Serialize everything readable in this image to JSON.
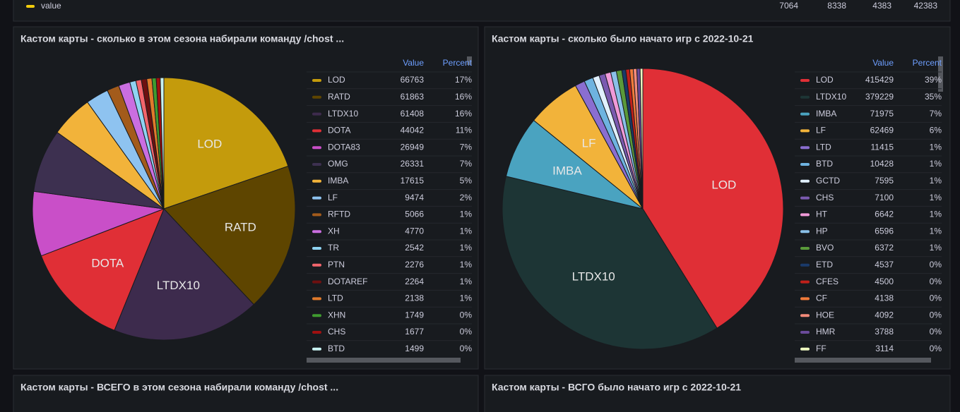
{
  "top_legend": {
    "name": "value",
    "values": [
      7064,
      8338,
      4383,
      42383
    ]
  },
  "chart_data": [
    {
      "type": "pie",
      "title": "Кастом карты - сколько в этом сезона набирали команду /chost ...",
      "legend_columns": [
        "Value",
        "Percent"
      ],
      "categories": [
        "LOD",
        "RATD",
        "LTDX10",
        "DOTA",
        "DOTA83",
        "OMG",
        "IMBA",
        "LF",
        "RFTD",
        "XH",
        "TR",
        "PTN",
        "DOTAREF",
        "LTD",
        "XHN",
        "CHS",
        "BTD"
      ],
      "values": [
        66763,
        61863,
        61408,
        44042,
        26949,
        26331,
        17615,
        9474,
        5066,
        4770,
        2542,
        2276,
        2264,
        2138,
        1749,
        1677,
        1499
      ],
      "percent_labels": [
        "17%",
        "16%",
        "16%",
        "11%",
        "7%",
        "7%",
        "5%",
        "2%",
        "1%",
        "1%",
        "1%",
        "1%",
        "1%",
        "1%",
        "0%",
        "0%",
        "0%"
      ],
      "colors": [
        "#c49b0c",
        "#5e4500",
        "#3d2b4d",
        "#e02f36",
        "#c94fc8",
        "#3d3050",
        "#f2b33a",
        "#8ec3f0",
        "#a35b1b",
        "#ca6ee0",
        "#8fd3f2",
        "#f2656c",
        "#6e1010",
        "#e07a2b",
        "#3f9b2f",
        "#a01010",
        "#c8f2f2"
      ]
    },
    {
      "type": "pie",
      "title": "Кастом карты - сколько было начато игр с 2022-10-21",
      "legend_columns": [
        "Value",
        "Percent"
      ],
      "categories": [
        "LOD",
        "LTDX10",
        "IMBA",
        "LF",
        "LTD",
        "BTD",
        "GCTD",
        "CHS",
        "HT",
        "HP",
        "BVO",
        "ETD",
        "CFES",
        "CF",
        "HOE",
        "HMR",
        "FF"
      ],
      "values": [
        415429,
        379229,
        71975,
        62469,
        11415,
        10428,
        7595,
        7100,
        6642,
        6596,
        6372,
        4537,
        4500,
        4138,
        4092,
        3788,
        3114
      ],
      "percent_labels": [
        "39%",
        "35%",
        "7%",
        "6%",
        "1%",
        "1%",
        "1%",
        "1%",
        "1%",
        "1%",
        "1%",
        "0%",
        "0%",
        "0%",
        "0%",
        "0%",
        "0%"
      ],
      "colors": [
        "#e02f36",
        "#1d3535",
        "#4aa3c0",
        "#f2b33a",
        "#8a6ed0",
        "#6eb3e0",
        "#e0f0ff",
        "#7a5ab0",
        "#f09ad8",
        "#8ac0e8",
        "#5a9a3a",
        "#1a3a6a",
        "#c0201a",
        "#f07a3a",
        "#f28a7a",
        "#6a4a9a",
        "#eef8c0"
      ]
    }
  ],
  "bottom_panels": [
    "Кастом карты - ВСЕГО в этом сезона набирали команду /chost ...",
    "Кастом карты - ВСГО было начато игр с 2022-10-21"
  ]
}
